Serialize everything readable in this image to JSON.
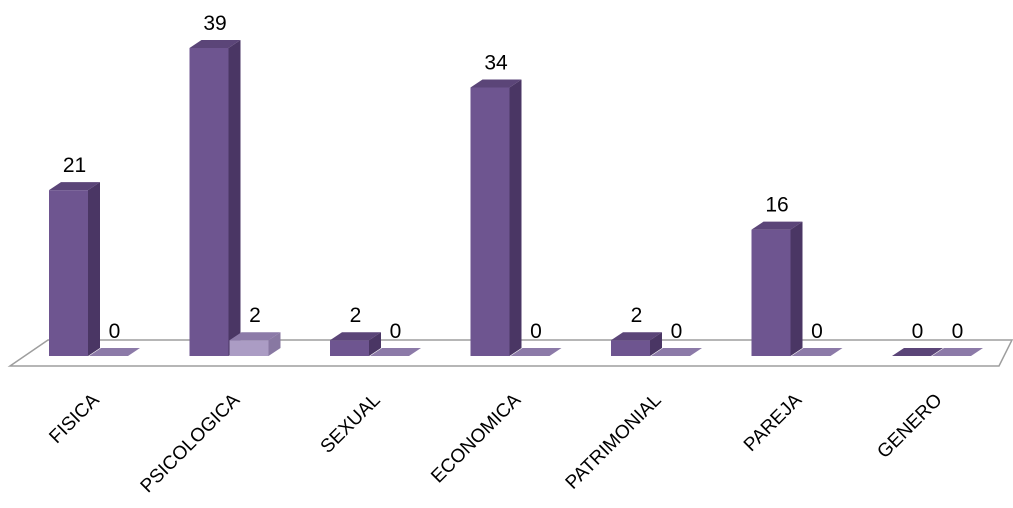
{
  "chart_data": {
    "type": "bar",
    "style": "3d-clustered-column",
    "categories": [
      "FISICA",
      "PSICOLOGICA",
      "SEXUAL",
      "ECONOMICA",
      "PATRIMONIAL",
      "PAREJA",
      "GENERO"
    ],
    "series": [
      {
        "values": [
          21,
          39,
          2,
          34,
          2,
          16,
          0
        ]
      },
      {
        "values": [
          0,
          2,
          0,
          0,
          0,
          0,
          0
        ]
      }
    ],
    "ylim": [
      0,
      39
    ],
    "grid": false,
    "legend": "none",
    "colors": {
      "series1_front": "#6e5590",
      "series1_side": "#4a3664",
      "series1_top": "#5b4578",
      "series2_front": "#ab9cc4",
      "series2_side": "#8878a2",
      "series2_top": "#8c7aa8",
      "floor_stroke": "#9e9e9e"
    }
  }
}
